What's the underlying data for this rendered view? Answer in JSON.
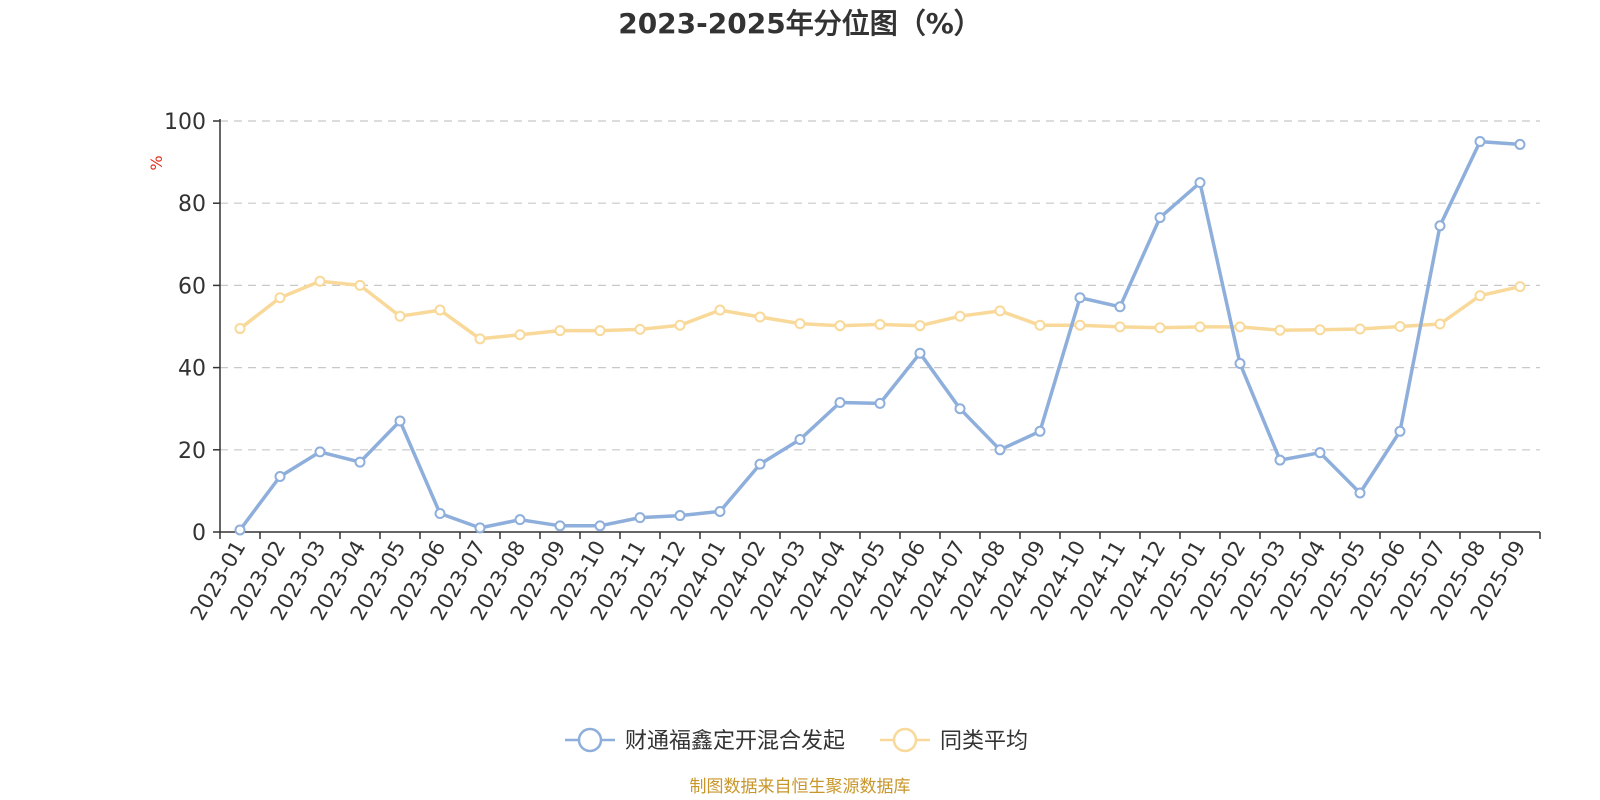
{
  "chart_data": {
    "type": "line",
    "title": "2023-2025年分位图（%）",
    "y_unit": "%",
    "ylim": [
      0,
      100
    ],
    "y_ticks": [
      0,
      20,
      40,
      60,
      80,
      100
    ],
    "grid": true,
    "legend_placement": "bottom-center",
    "categories": [
      "2023-01",
      "2023-02",
      "2023-03",
      "2023-04",
      "2023-05",
      "2023-06",
      "2023-07",
      "2023-08",
      "2023-09",
      "2023-10",
      "2023-11",
      "2023-12",
      "2024-01",
      "2024-02",
      "2024-03",
      "2024-04",
      "2024-05",
      "2024-06",
      "2024-07",
      "2024-08",
      "2024-09",
      "2024-10",
      "2024-11",
      "2024-12",
      "2025-01",
      "2025-02",
      "2025-03",
      "2025-04",
      "2025-05",
      "2025-06",
      "2025-07",
      "2025-08",
      "2025-09"
    ],
    "series": [
      {
        "name": "财通福鑫定开混合发起",
        "color": "#8eaedb",
        "values": [
          0.5,
          13.5,
          19.5,
          17,
          27,
          4.5,
          1,
          3,
          1.5,
          1.5,
          3.5,
          4,
          5,
          16.5,
          22.5,
          31.5,
          31.3,
          43.5,
          30,
          20,
          24.5,
          57,
          54.8,
          76.5,
          85,
          41,
          17.5,
          19.3,
          9.5,
          24.5,
          74.5,
          95,
          94.3
        ]
      },
      {
        "name": "同类平均",
        "color": "#f9d999",
        "values": [
          49.5,
          57,
          61,
          60,
          52.5,
          54,
          47,
          48,
          49,
          49,
          49.3,
          50.3,
          54,
          52.3,
          50.7,
          50.2,
          50.5,
          50.2,
          52.5,
          53.8,
          50.3,
          50.3,
          49.9,
          49.7,
          49.9,
          49.9,
          49.1,
          49.2,
          49.4,
          50,
          50.6,
          57.5,
          59.7
        ]
      }
    ]
  },
  "source_note": "制图数据来自恒生聚源数据库"
}
